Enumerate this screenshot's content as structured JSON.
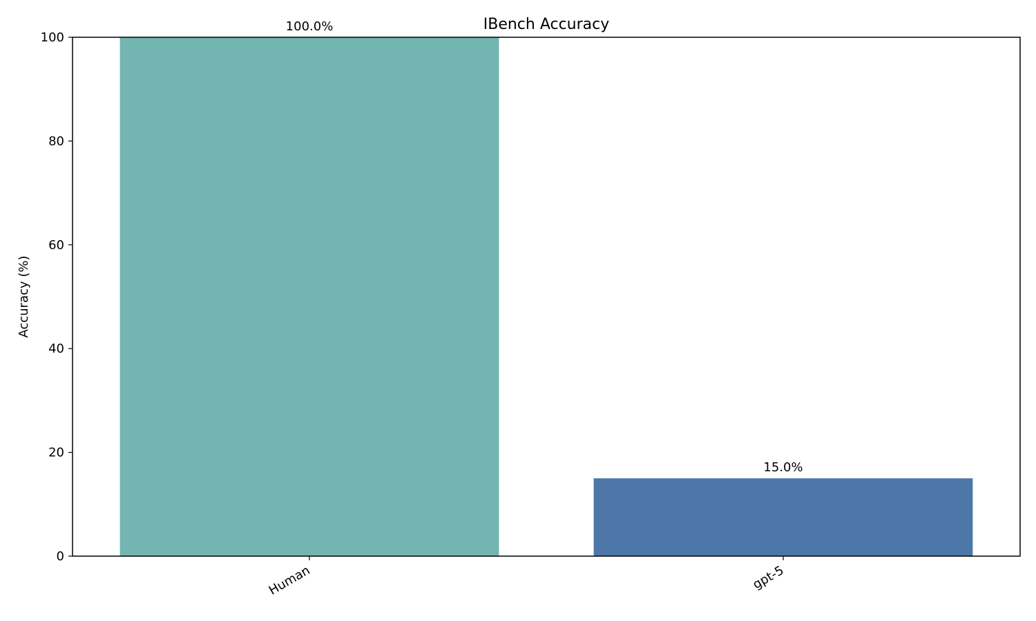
{
  "chart_data": {
    "type": "bar",
    "title": "IBench Accuracy",
    "xlabel": "",
    "ylabel": "Accuracy (%)",
    "ylim": [
      0,
      100
    ],
    "yticks": [
      0,
      20,
      40,
      60,
      80,
      100
    ],
    "categories": [
      "Human",
      "gpt-5"
    ],
    "values": [
      100.0,
      15.0
    ],
    "value_labels": [
      "100.0%",
      "15.0%"
    ],
    "bar_colors": [
      "#73b6b1",
      "#4c77a8"
    ],
    "grid": false,
    "legend": "none"
  }
}
